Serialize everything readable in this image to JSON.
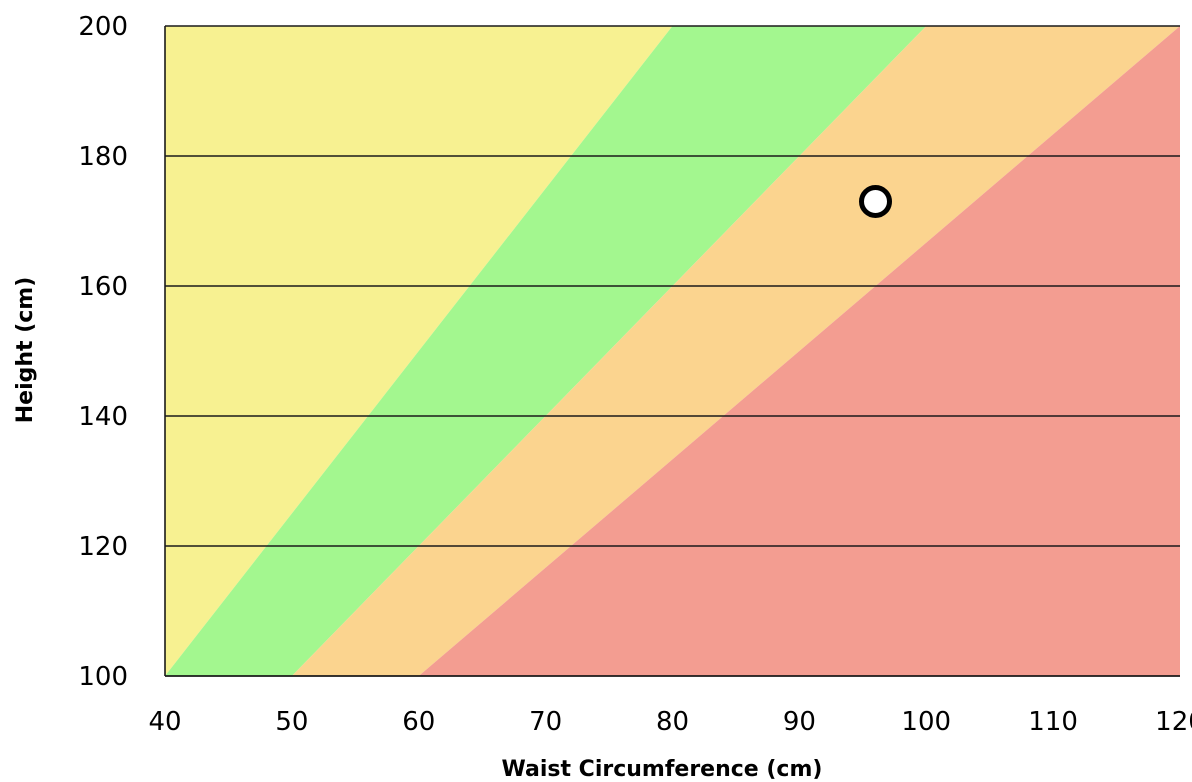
{
  "chart_data": {
    "type": "scatter",
    "title": "",
    "xlabel": "Waist Circumference (cm)",
    "ylabel": "Height (cm)",
    "xlim": [
      40,
      120
    ],
    "ylim": [
      100,
      200
    ],
    "x_ticks": [
      "40",
      "50",
      "60",
      "70",
      "80",
      "90",
      "100",
      "110",
      "120"
    ],
    "y_ticks": [
      "100",
      "120",
      "140",
      "160",
      "180",
      "200"
    ],
    "grid": "horizontal",
    "zones": [
      {
        "min_ratio": 0,
        "max_ratio": 0.4,
        "color": "#f7f191"
      },
      {
        "min_ratio": 0.4,
        "max_ratio": 0.5,
        "color": "#a3f78f"
      },
      {
        "min_ratio": 0.5,
        "max_ratio": 0.6,
        "color": "#fbd48f"
      },
      {
        "min_ratio": 0.6,
        "max_ratio": 999,
        "color": "#f39d91"
      }
    ],
    "points": [
      {
        "x": 96,
        "y": 173
      }
    ]
  }
}
